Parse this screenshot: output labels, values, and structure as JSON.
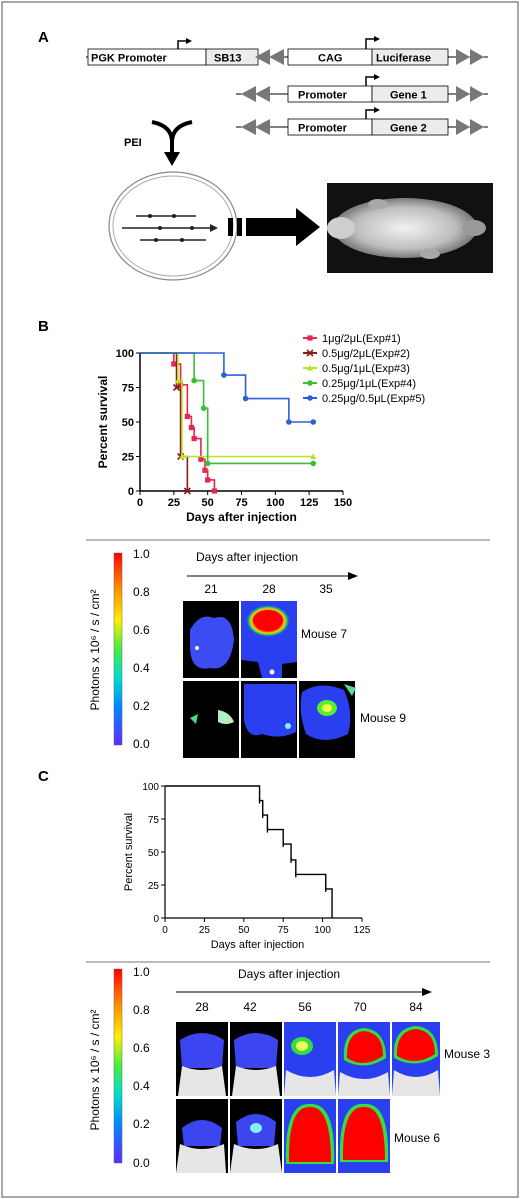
{
  "panel_a": {
    "label": "A",
    "construct1": {
      "promoter": "PGK Promoter",
      "gene": "SB13",
      "promoter2": "CAG",
      "reporter": "Luciferase"
    },
    "construct2": {
      "promoter": "Promoter",
      "gene": "Gene 1"
    },
    "construct3": {
      "promoter": "Promoter",
      "gene": "Gene 2"
    },
    "reagent": "PEI"
  },
  "panel_b": {
    "label": "B",
    "bioluminescence": {
      "scale_label": "Photons x 10⁶ / s / cm²",
      "scale_ticks": [
        "1.0",
        "0.8",
        "0.6",
        "0.4",
        "0.2",
        "0.0"
      ],
      "axis_title": "Days after injection",
      "days": [
        "21",
        "28",
        "35"
      ],
      "mice": [
        "Mouse 7",
        "Mouse 9"
      ]
    }
  },
  "panel_c": {
    "label": "C",
    "bioluminescence": {
      "scale_label": "Photons x 10⁶ / s / cm²",
      "scale_ticks": [
        "1.0",
        "0.8",
        "0.6",
        "0.4",
        "0.2",
        "0.0"
      ],
      "axis_title": "Days after injection",
      "days": [
        "28",
        "42",
        "56",
        "70",
        "84"
      ],
      "mice": [
        "Mouse 3",
        "Mouse 6"
      ]
    }
  },
  "chart_data": [
    {
      "type": "line",
      "step": true,
      "xlabel": "Days after injection",
      "ylabel": "Percent survival",
      "xlim": [
        0,
        150
      ],
      "ylim": [
        0,
        100
      ],
      "xticks": [
        "0",
        "25",
        "50",
        "75",
        "100",
        "125",
        "150"
      ],
      "yticks": [
        "0",
        "25",
        "50",
        "75",
        "100"
      ],
      "legend_position": "top-right",
      "series": [
        {
          "name": "1μg/2μL(Exp#1)",
          "color": "#e8264f",
          "marker": "square",
          "points": [
            [
              0,
              100
            ],
            [
              25,
              92
            ],
            [
              30,
              77
            ],
            [
              35,
              54
            ],
            [
              38,
              46
            ],
            [
              40,
              38
            ],
            [
              45,
              23
            ],
            [
              48,
              15
            ],
            [
              50,
              8
            ],
            [
              55,
              0
            ]
          ]
        },
        {
          "name": "0.5μg/2μL(Exp#2)",
          "color": "#8b1a1a",
          "marker": "x",
          "points": [
            [
              0,
              100
            ],
            [
              27,
              75
            ],
            [
              30,
              25
            ],
            [
              35,
              0
            ]
          ]
        },
        {
          "name": "0.5μg/1μL(Exp#3)",
          "color": "#b5e61d",
          "marker": "triangle",
          "points": [
            [
              0,
              100
            ],
            [
              28,
              80
            ],
            [
              31,
              25
            ],
            [
              128,
              25
            ]
          ]
        },
        {
          "name": "0.25μg/1μL(Exp#4)",
          "color": "#3dbd3a",
          "marker": "circle",
          "points": [
            [
              0,
              100
            ],
            [
              40,
              80
            ],
            [
              47,
              60
            ],
            [
              50,
              20
            ],
            [
              128,
              20
            ]
          ]
        },
        {
          "name": "0.25μg/0.5μL(Exp#5)",
          "color": "#2e5fd8",
          "marker": "circle",
          "points": [
            [
              0,
              100
            ],
            [
              62,
              84
            ],
            [
              78,
              67
            ],
            [
              110,
              50
            ],
            [
              128,
              50
            ]
          ]
        }
      ]
    },
    {
      "type": "line",
      "step": true,
      "xlabel": "Days after injection",
      "ylabel": "Percent survival",
      "xlim": [
        0,
        125
      ],
      "ylim": [
        0,
        100
      ],
      "xticks": [
        "0",
        "25",
        "50",
        "75",
        "100",
        "125"
      ],
      "yticks": [
        "0",
        "25",
        "50",
        "75",
        "100"
      ],
      "series": [
        {
          "color": "#000000",
          "points": [
            [
              0,
              100
            ],
            [
              60,
              89
            ],
            [
              62,
              78
            ],
            [
              65,
              67
            ],
            [
              75,
              56
            ],
            [
              80,
              44
            ],
            [
              83,
              33
            ],
            [
              102,
              22
            ],
            [
              106,
              0
            ]
          ]
        }
      ]
    }
  ]
}
